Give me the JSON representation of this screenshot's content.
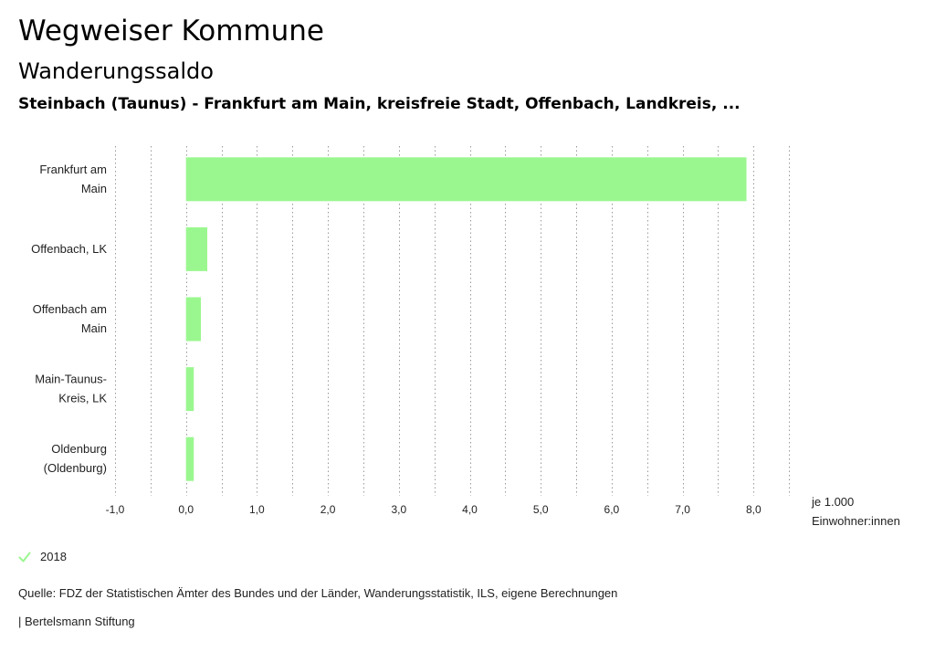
{
  "header": {
    "title": "Wegweiser Kommune",
    "subtitle": "Wanderungssaldo",
    "region": "Steinbach (Taunus) - Frankfurt am Main, kreisfreie Stadt, Offenbach, Landkreis, ..."
  },
  "chart_data": {
    "type": "bar",
    "orientation": "horizontal",
    "categories": [
      [
        "Frankfurt am",
        "Main"
      ],
      [
        "Offenbach, LK"
      ],
      [
        "Offenbach am",
        "Main"
      ],
      [
        "Main-Taunus-",
        "Kreis, LK"
      ],
      [
        "Oldenburg",
        "(Oldenburg)"
      ]
    ],
    "series": [
      {
        "name": "2018",
        "color": "#9af78f",
        "values": [
          7.9,
          0.3,
          0.21,
          0.11,
          0.11
        ]
      }
    ],
    "xlim": [
      -1.0,
      8.5
    ],
    "xticks": [
      -1.0,
      0.0,
      1.0,
      2.0,
      3.0,
      4.0,
      5.0,
      6.0,
      7.0,
      8.0
    ],
    "xtick_labels": [
      "-1,0",
      "0,0",
      "1,0",
      "2,0",
      "3,0",
      "4,0",
      "5,0",
      "6,0",
      "7,0",
      "8,0"
    ],
    "xlabel_line1": "je 1.000",
    "xlabel_line2": "Einwohner:innen",
    "grid": "vertical-dotted",
    "legend_position": "bottom-left"
  },
  "legend": {
    "label": "2018",
    "color": "#9af78f"
  },
  "footer": {
    "source": "Quelle: FDZ der Statistischen Ämter des Bundes und der Länder, Wanderungsstatistik, ILS, eigene Berechnungen",
    "credit": "| Bertelsmann Stiftung"
  }
}
